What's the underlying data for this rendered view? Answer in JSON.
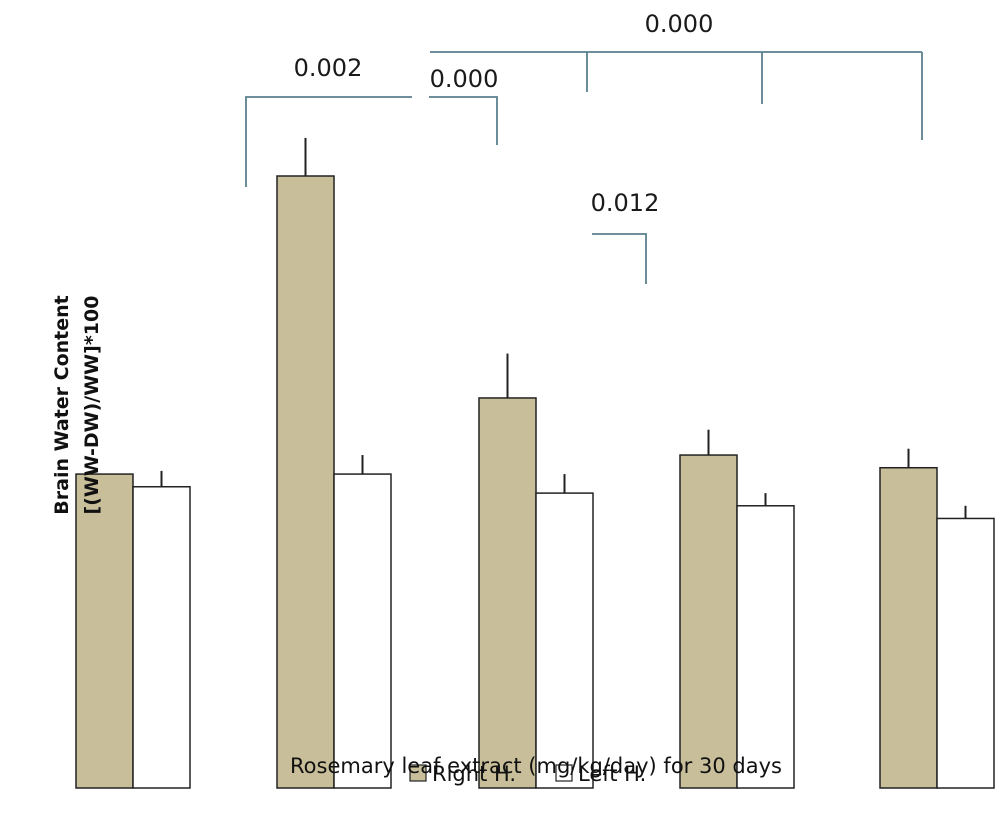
{
  "chart_data": {
    "type": "bar",
    "title": "",
    "xlabel": "Rosemary leaf extract (mg/kg/day) for 30 days",
    "ylabel": "Brain Water Content",
    "ylabel_line2": "[(WW-DW)/WW]*100",
    "categories": [
      "",
      "",
      "",
      "",
      ""
    ],
    "ylim": [
      0,
      100
    ],
    "grid": false,
    "legend_placement": "bottom-center",
    "series": [
      {
        "name": "Right H.",
        "color": "#c8bf9a",
        "values": [
          49.5,
          96.5,
          61.5,
          52.5,
          50.5
        ],
        "errors": [
          0,
          6,
          7,
          4,
          3
        ]
      },
      {
        "name": "Left H.",
        "color": "#ffffff",
        "values": [
          47.5,
          49.5,
          46.5,
          44.5,
          42.5
        ],
        "errors": [
          2.5,
          3,
          3,
          2,
          2
        ]
      }
    ],
    "annotations": [
      {
        "text": "0.000",
        "type": "p-value"
      },
      {
        "text": "0.002",
        "type": "p-value"
      },
      {
        "text": "0.000",
        "type": "p-value"
      },
      {
        "text": "0.012",
        "type": "p-value"
      }
    ]
  }
}
